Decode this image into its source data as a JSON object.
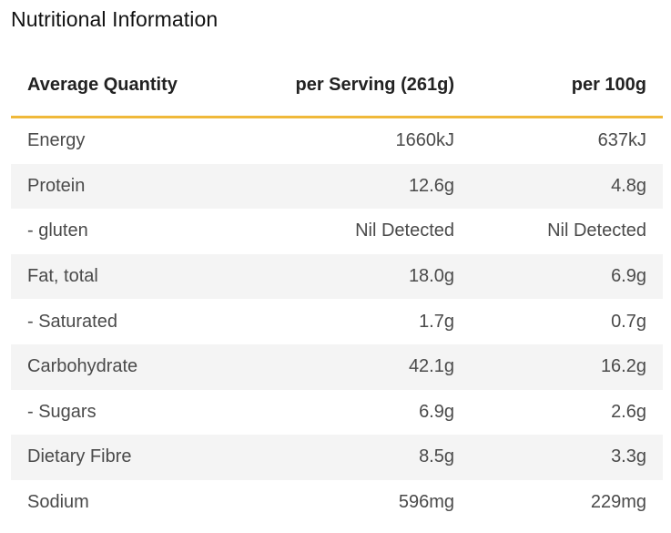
{
  "title": "Nutritional Information",
  "columns": {
    "quantity": "Average Quantity",
    "per_serving": "per Serving (261g)",
    "per_100g": "per 100g"
  },
  "colors": {
    "accent_rule": "#f0b93a",
    "stripe": "#f4f4f4"
  },
  "rows": [
    {
      "name": "Energy",
      "per_serving": "1660kJ",
      "per_100g": "637kJ"
    },
    {
      "name": "Protein",
      "per_serving": "12.6g",
      "per_100g": "4.8g"
    },
    {
      "name": "- gluten",
      "per_serving": "Nil Detected",
      "per_100g": "Nil Detected"
    },
    {
      "name": "Fat, total",
      "per_serving": "18.0g",
      "per_100g": "6.9g"
    },
    {
      "name": "- Saturated",
      "per_serving": "1.7g",
      "per_100g": "0.7g"
    },
    {
      "name": "Carbohydrate",
      "per_serving": "42.1g",
      "per_100g": "16.2g"
    },
    {
      "name": "- Sugars",
      "per_serving": "6.9g",
      "per_100g": "2.6g"
    },
    {
      "name": "Dietary Fibre",
      "per_serving": "8.5g",
      "per_100g": "3.3g"
    },
    {
      "name": "Sodium",
      "per_serving": "596mg",
      "per_100g": "229mg"
    }
  ]
}
